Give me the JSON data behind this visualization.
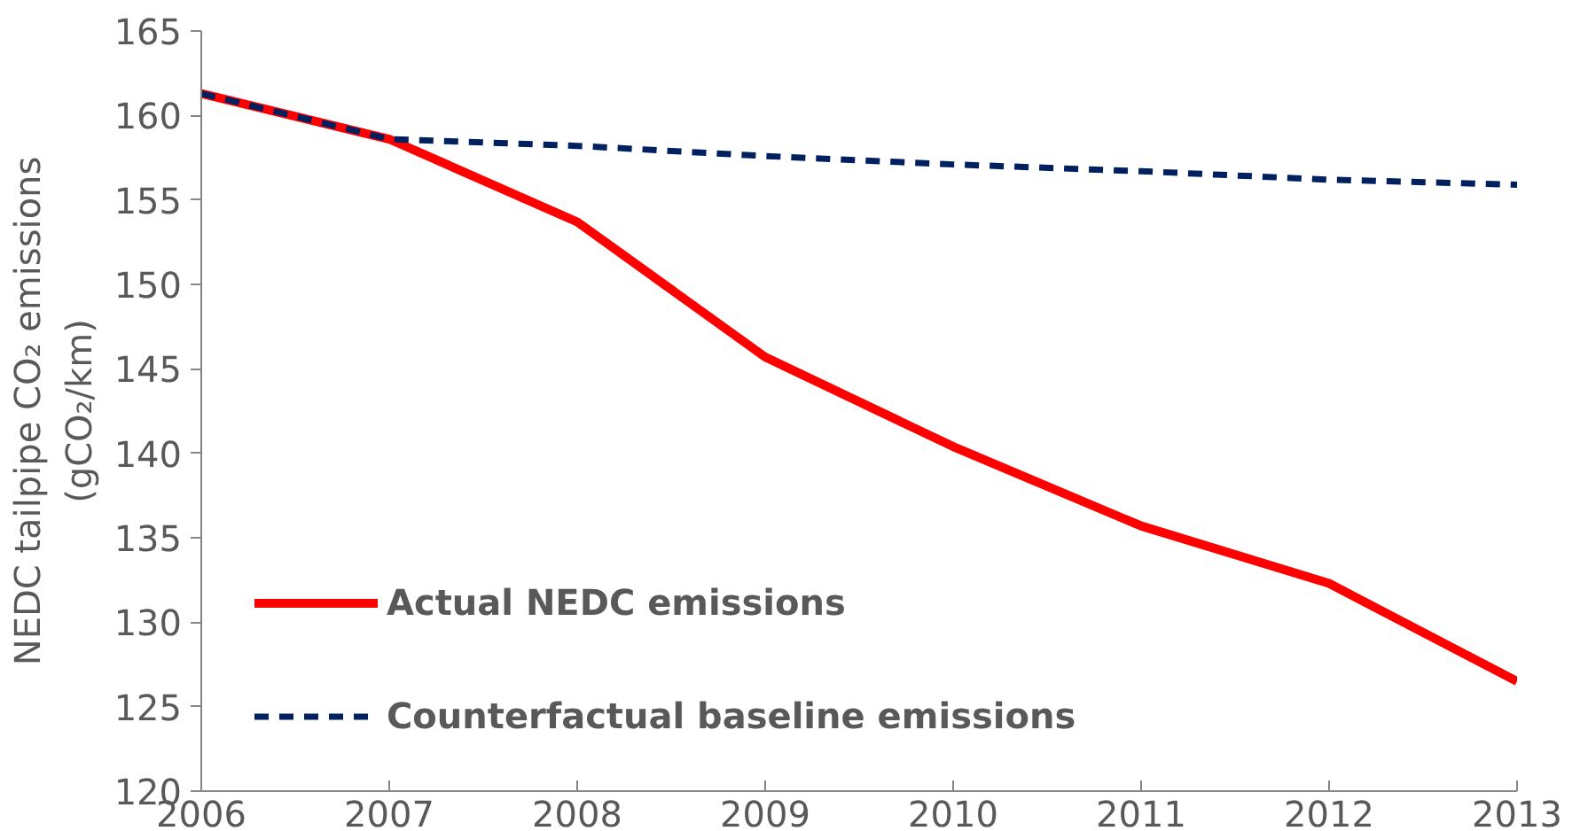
{
  "chart_data": {
    "type": "line",
    "ylabel": "NEDC tailpipe CO₂ emissions\n(gCO₂/km)",
    "x": [
      2006,
      2007,
      2008,
      2009,
      2010,
      2011,
      2012,
      2013
    ],
    "series": [
      {
        "name": "Actual NEDC emissions",
        "color": "#ff0000",
        "line_style": "solid",
        "values": [
          161.3,
          158.6,
          153.7,
          145.7,
          140.4,
          135.7,
          132.3,
          126.5
        ]
      },
      {
        "name": "Counterfactual baseline emissions",
        "color": "#002060",
        "line_style": "dashed",
        "values": [
          161.3,
          158.6,
          158.2,
          157.6,
          157.1,
          156.7,
          156.2,
          155.9
        ]
      }
    ],
    "xlim": [
      2006,
      2013
    ],
    "xticks": [
      2006,
      2007,
      2008,
      2009,
      2010,
      2011,
      2012,
      2013
    ],
    "ylim": [
      120,
      165
    ],
    "yticks": [
      120,
      125,
      130,
      135,
      140,
      145,
      150,
      155,
      160,
      165
    ],
    "grid": false,
    "legend": "bottom left",
    "marker": "none"
  }
}
